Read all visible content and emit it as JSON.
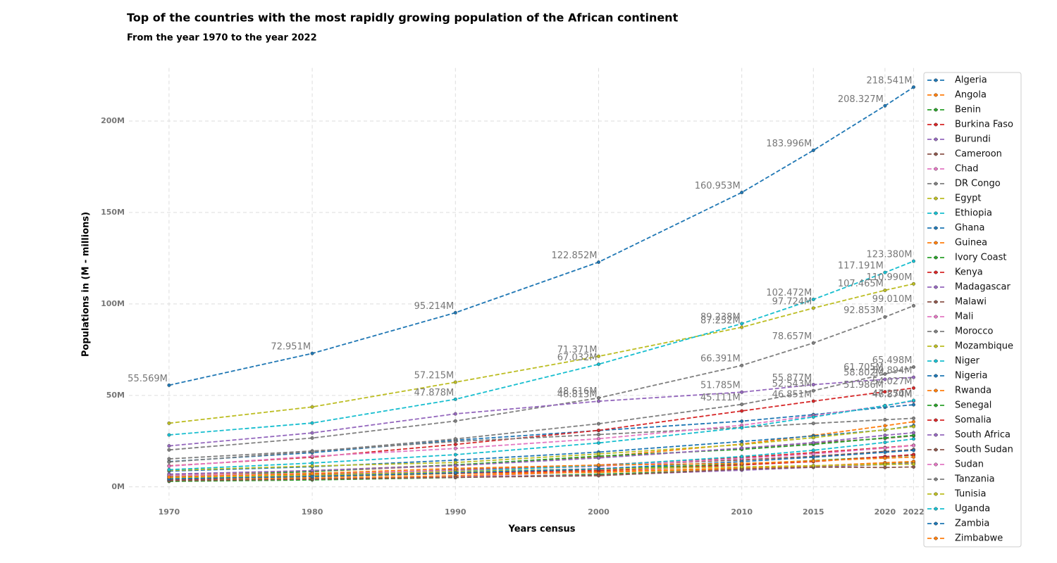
{
  "chart_data": {
    "type": "line",
    "title": "Top of the countries with the most rapidly growing population of the African continent",
    "subtitle": "From the year 1970 to the year 2022",
    "x_label": "Years census",
    "y_label": "Populations in (M - millions)",
    "x": [
      1970,
      1980,
      1990,
      2000,
      2010,
      2015,
      2020,
      2022
    ],
    "xlim": [
      1967.2,
      2023.5
    ],
    "xticks": [
      1970,
      1980,
      1990,
      2000,
      2010,
      2015,
      2020,
      2022
    ],
    "ylim": [
      -7,
      229
    ],
    "yticks": [
      {
        "value": 0,
        "label": "0M"
      },
      {
        "value": 50,
        "label": "50M"
      },
      {
        "value": 100,
        "label": "100M"
      },
      {
        "value": 150,
        "label": "150M"
      },
      {
        "value": 200,
        "label": "200M"
      }
    ],
    "grid": true,
    "legend": "upper right outside",
    "series": [
      {
        "name": "Algeria",
        "color": "#1f77b4",
        "values": [
          13.8,
          18.7,
          25.5,
          30.8,
          35.9,
          39.5,
          43.5,
          44.903
        ]
      },
      {
        "name": "Angola",
        "color": "#ff7f0e",
        "values": [
          6.0,
          8.3,
          11.8,
          16.4,
          23.4,
          28.1,
          33.4,
          35.6
        ]
      },
      {
        "name": "Benin",
        "color": "#2ca02c",
        "values": [
          3.0,
          3.8,
          5.1,
          6.9,
          9.4,
          10.9,
          12.6,
          13.4
        ]
      },
      {
        "name": "Burkina Faso",
        "color": "#d62728",
        "values": [
          6.0,
          7.0,
          9.1,
          11.9,
          16.1,
          18.7,
          21.5,
          22.7
        ]
      },
      {
        "name": "Burundi",
        "color": "#9467bd",
        "values": [
          3.5,
          4.3,
          5.6,
          6.3,
          9.1,
          10.7,
          12.2,
          12.9
        ]
      },
      {
        "name": "Cameroon",
        "color": "#8c564b",
        "values": [
          6.8,
          8.9,
          12.0,
          15.9,
          21.0,
          24.0,
          26.5,
          27.9
        ]
      },
      {
        "name": "Chad",
        "color": "#e377c2",
        "values": [
          3.7,
          4.5,
          5.8,
          8.3,
          12.0,
          14.1,
          16.6,
          17.7
        ]
      },
      {
        "name": "DR Congo",
        "color": "#7f7f7f",
        "values": [
          20.2,
          26.7,
          35.99,
          48.616,
          66.391,
          78.657,
          92.853,
          99.01
        ],
        "value_labels": [
          null,
          null,
          null,
          "48.616M",
          "66.391M",
          "78.657M",
          "92.853M",
          "99.010M"
        ]
      },
      {
        "name": "Egypt",
        "color": "#bcbd22",
        "values": [
          34.8,
          43.7,
          57.215,
          71.371,
          87.252,
          97.724,
          107.465,
          110.99
        ],
        "value_labels": [
          null,
          null,
          "57.215M",
          "71.371M",
          "87.252M",
          "97.724M",
          "107.465M",
          "110.990M"
        ]
      },
      {
        "name": "Ethiopia",
        "color": "#17becf",
        "values": [
          28.4,
          34.9,
          47.878,
          67.032,
          89.238,
          102.472,
          117.191,
          123.38
        ],
        "value_labels": [
          null,
          null,
          "47.878M",
          "67.032M",
          "89.238M",
          "102.472M",
          "117.191M",
          "123.380M"
        ]
      },
      {
        "name": "Ghana",
        "color": "#1f77b4",
        "values": [
          8.6,
          11.0,
          14.6,
          19.0,
          24.8,
          27.8,
          31.1,
          33.5
        ]
      },
      {
        "name": "Guinea",
        "color": "#ff7f0e",
        "values": [
          4.2,
          4.5,
          6.1,
          8.3,
          10.3,
          11.4,
          13.2,
          13.9
        ]
      },
      {
        "name": "Ivory Coast",
        "color": "#2ca02c",
        "values": [
          5.5,
          8.4,
          12.0,
          16.8,
          20.5,
          23.2,
          26.8,
          28.2
        ]
      },
      {
        "name": "Kenya",
        "color": "#d62728",
        "values": [
          11.5,
          16.2,
          23.2,
          30.9,
          41.5,
          46.851,
          51.986,
          54.027
        ],
        "value_labels": [
          null,
          null,
          null,
          null,
          null,
          "46.851M",
          "51.986M",
          "54.027M"
        ]
      },
      {
        "name": "Madagascar",
        "color": "#9467bd",
        "values": [
          7.0,
          8.9,
          11.6,
          15.8,
          21.2,
          24.2,
          28.2,
          29.6
        ]
      },
      {
        "name": "Malawi",
        "color": "#8c564b",
        "values": [
          4.6,
          6.2,
          9.4,
          11.7,
          14.7,
          16.7,
          19.4,
          20.4
        ]
      },
      {
        "name": "Mali",
        "color": "#e377c2",
        "values": [
          6.2,
          7.4,
          8.9,
          11.2,
          15.5,
          18.0,
          21.2,
          22.6
        ]
      },
      {
        "name": "Morocco",
        "color": "#7f7f7f",
        "values": [
          15.3,
          19.6,
          24.8,
          28.6,
          32.5,
          34.7,
          36.7,
          37.5
        ]
      },
      {
        "name": "Mozambique",
        "color": "#bcbd22",
        "values": [
          9.0,
          11.4,
          13.3,
          18.0,
          23.1,
          26.9,
          31.2,
          33.0
        ]
      },
      {
        "name": "Niger",
        "color": "#17becf",
        "values": [
          4.6,
          6.2,
          8.4,
          11.6,
          16.6,
          20.0,
          24.3,
          26.2
        ]
      },
      {
        "name": "Nigeria",
        "color": "#1f77b4",
        "values": [
          55.569,
          72.951,
          95.214,
          122.852,
          160.953,
          183.996,
          208.327,
          218.541
        ],
        "value_labels": [
          "55.569M",
          "72.951M",
          "95.214M",
          "122.852M",
          "160.953M",
          "183.996M",
          "208.327M",
          "218.541M"
        ]
      },
      {
        "name": "Rwanda",
        "color": "#ff7f0e",
        "values": [
          3.9,
          5.2,
          7.3,
          7.9,
          10.0,
          11.4,
          13.1,
          13.8
        ]
      },
      {
        "name": "Senegal",
        "color": "#2ca02c",
        "values": [
          4.4,
          5.7,
          7.5,
          9.7,
          12.5,
          14.4,
          16.4,
          17.3
        ]
      },
      {
        "name": "Somalia",
        "color": "#d62728",
        "values": [
          3.7,
          6.2,
          7.5,
          8.9,
          12.0,
          13.8,
          16.5,
          17.6
        ]
      },
      {
        "name": "South Africa",
        "color": "#9467bd",
        "values": [
          22.4,
          29.5,
          39.9,
          46.813,
          51.785,
          55.877,
          58.802,
          59.894
        ],
        "value_labels": [
          null,
          null,
          null,
          "46.813M",
          "51.785M",
          "55.877M",
          "58.802M",
          "59.894M"
        ]
      },
      {
        "name": "South Sudan",
        "color": "#8c564b",
        "values": [
          3.4,
          4.2,
          5.2,
          6.1,
          9.7,
          10.8,
          10.6,
          10.9
        ]
      },
      {
        "name": "Sudan",
        "color": "#e377c2",
        "values": [
          11.3,
          16.7,
          21.0,
          26.3,
          33.7,
          38.9,
          44.4,
          46.874
        ],
        "value_labels": [
          null,
          null,
          null,
          null,
          null,
          null,
          null,
          "46.874M"
        ]
      },
      {
        "name": "Tanzania",
        "color": "#7f7f7f",
        "values": [
          13.6,
          19.3,
          26.2,
          34.5,
          45.111,
          52.543,
          61.705,
          65.498
        ],
        "value_labels": [
          null,
          null,
          null,
          null,
          "45.111M",
          "52.543M",
          "61.705M",
          "65.498M"
        ]
      },
      {
        "name": "Tunisia",
        "color": "#bcbd22",
        "values": [
          5.1,
          6.4,
          8.4,
          9.8,
          10.9,
          11.6,
          12.2,
          12.4
        ]
      },
      {
        "name": "Uganda",
        "color": "#17becf",
        "values": [
          9.4,
          13.0,
          17.6,
          24.0,
          32.3,
          38.2,
          44.4,
          47.25
        ],
        "value_labels": [
          null,
          null,
          null,
          null,
          null,
          null,
          null,
          "47.250M"
        ]
      },
      {
        "name": "Zambia",
        "color": "#1f77b4",
        "values": [
          4.3,
          5.7,
          7.7,
          9.9,
          13.8,
          16.2,
          18.9,
          20.0
        ]
      },
      {
        "name": "Zimbabwe",
        "color": "#ff7f0e",
        "values": [
          5.3,
          7.3,
          10.1,
          11.9,
          12.8,
          14.2,
          15.7,
          16.3
        ]
      }
    ]
  }
}
